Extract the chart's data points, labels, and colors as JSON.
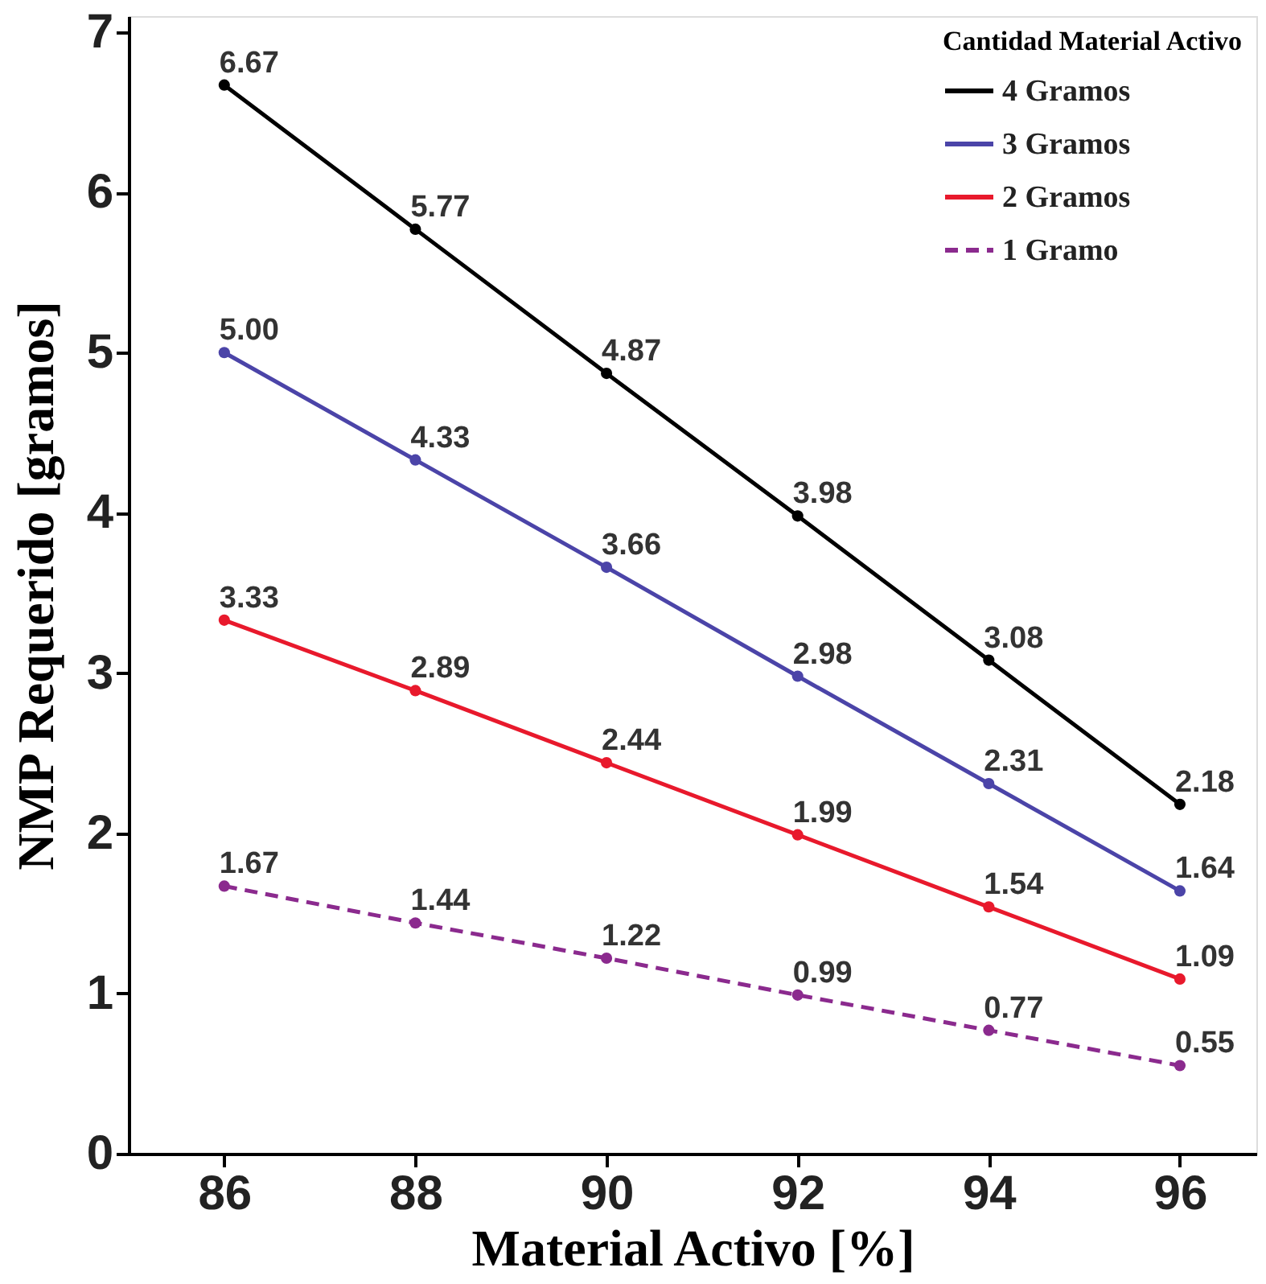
{
  "chart_data": {
    "type": "line",
    "xlabel": "Material Activo [%]",
    "ylabel": "NMP Requerido [gramos]",
    "legend_title": "Cantidad Material Activo",
    "x": [
      86,
      88,
      90,
      92,
      94,
      96
    ],
    "series": [
      {
        "name": "4 Gramos",
        "color": "#000000",
        "values": [
          6.67,
          5.77,
          4.87,
          3.98,
          3.08,
          2.18
        ]
      },
      {
        "name": "3 Gramos",
        "color": "#4b44a8",
        "values": [
          5.0,
          4.33,
          3.66,
          2.98,
          2.31,
          1.64
        ],
        "value_labels": [
          "5.00",
          "4.33",
          "3.66",
          "2.98",
          "2.31",
          "1.64"
        ]
      },
      {
        "name": "2 Gramos",
        "color": "#e8192c",
        "values": [
          3.33,
          2.89,
          2.44,
          1.99,
          1.54,
          1.09
        ]
      },
      {
        "name": "1 Gramo",
        "color": "#8b2a8e",
        "values": [
          1.67,
          1.44,
          1.22,
          0.99,
          0.77,
          0.55
        ],
        "line_style": "dashed"
      }
    ],
    "xlim": [
      85,
      96.8
    ],
    "xticks": [
      86,
      88,
      90,
      92,
      94,
      96
    ],
    "ylim": [
      0,
      7.1
    ],
    "yticks": [
      0,
      1,
      2,
      3,
      4,
      5,
      6,
      7
    ],
    "grid": false,
    "legend": "top right",
    "marker": "circle",
    "line_style": "solid",
    "data_labels": true
  }
}
